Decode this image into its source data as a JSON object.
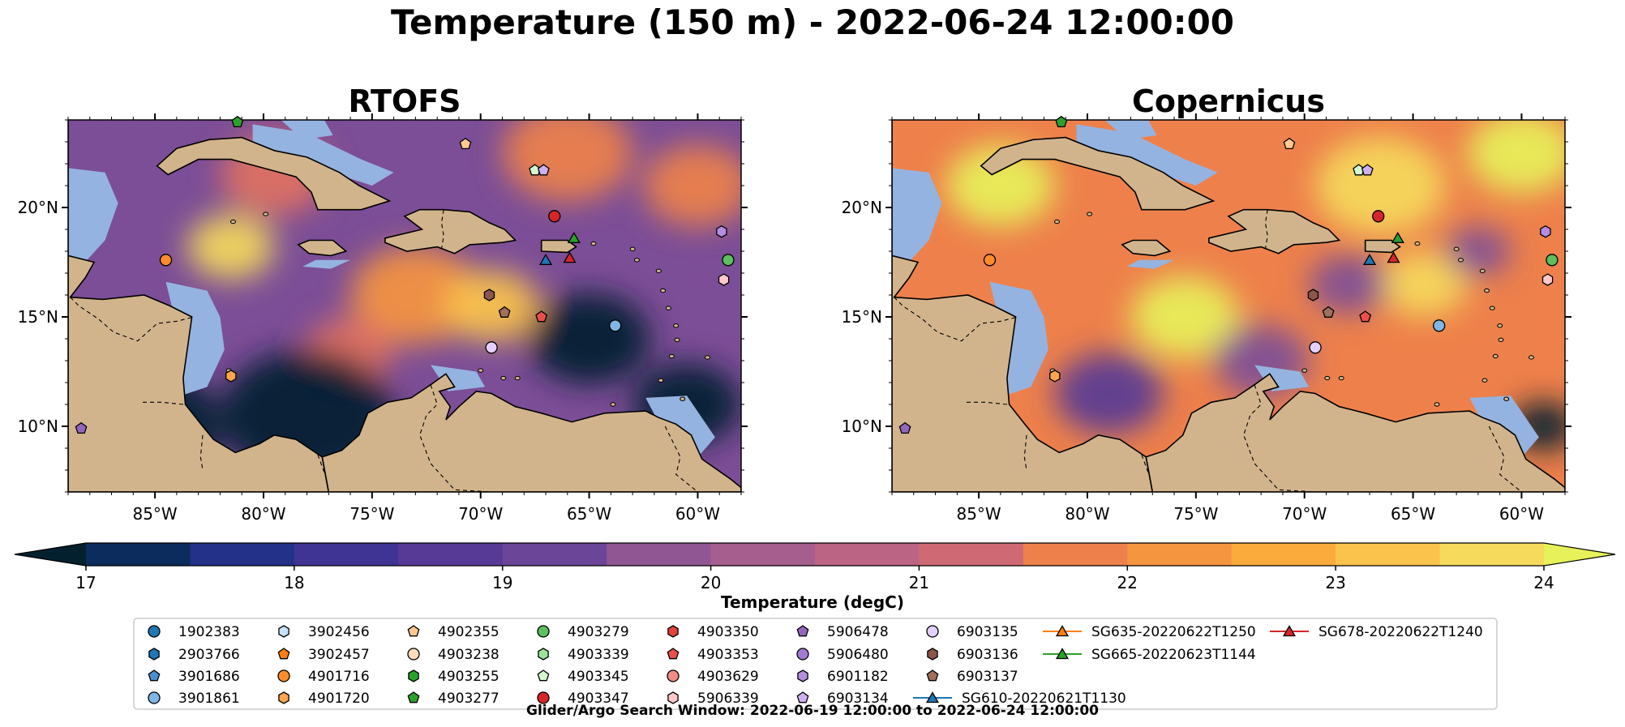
{
  "figure": {
    "title": "Temperature (150 m) - 2022-06-24 12:00:00",
    "footer": "Glider/Argo Search Window: 2022-06-19 12:00:00 to 2022-06-24 12:00:00"
  },
  "colors": {
    "land": "#d2b48c",
    "shelf": "#95b3e0",
    "coast": "#000000",
    "cmap": [
      "#03202f",
      "#0b2c5c",
      "#233189",
      "#3f3494",
      "#563a96",
      "#6b4598",
      "#7c4e97",
      "#905694",
      "#a55e8d",
      "#bb6484",
      "#cf6a74",
      "#e17261",
      "#ee814b",
      "#f69540",
      "#fbab3b",
      "#fbc34c",
      "#f5da5c",
      "#e7f15a"
    ]
  },
  "chart_data": [
    {
      "type": "heatmap",
      "title": "RTOFS",
      "subtitle": "",
      "lon_range": [
        -89,
        -58
      ],
      "lat_range": [
        7,
        24
      ],
      "xticks": [
        -85,
        -80,
        -75,
        -70,
        -65,
        -60
      ],
      "xtick_labels": [
        "85°W",
        "80°W",
        "75°W",
        "70°W",
        "65°W",
        "60°W"
      ],
      "yticks": [
        10,
        15,
        20
      ],
      "ytick_labels": [
        "10°N",
        "15°N",
        "20°N"
      ],
      "background_level": 19.6,
      "field_blobs": [
        {
          "lon": -81.5,
          "lat": 18.2,
          "value": 23.6,
          "r": 2.0
        },
        {
          "lon": -79.5,
          "lat": 21.5,
          "value": 21.5,
          "r": 2.5
        },
        {
          "lon": -73.0,
          "lat": 16.0,
          "value": 22.3,
          "r": 3.0
        },
        {
          "lon": -69.5,
          "lat": 15.5,
          "value": 23.0,
          "r": 2.2
        },
        {
          "lon": -66.0,
          "lat": 22.5,
          "value": 22.0,
          "r": 3.0
        },
        {
          "lon": -60.0,
          "lat": 21.0,
          "value": 22.0,
          "r": 2.5
        },
        {
          "lon": -76.0,
          "lat": 13.5,
          "value": 21.5,
          "r": 2.0
        },
        {
          "lon": -65.0,
          "lat": 14.0,
          "value": 17.0,
          "r": 2.8
        },
        {
          "lon": -78.0,
          "lat": 10.5,
          "value": 17.0,
          "r": 4.0
        },
        {
          "lon": -86.0,
          "lat": 10.0,
          "value": 17.0,
          "r": 4.0
        },
        {
          "lon": -60.5,
          "lat": 11.0,
          "value": 17.0,
          "r": 2.5
        }
      ]
    },
    {
      "type": "heatmap",
      "title": "Copernicus",
      "subtitle": "",
      "lon_range": [
        -89,
        -58
      ],
      "lat_range": [
        7,
        24
      ],
      "xticks": [
        -85,
        -80,
        -75,
        -70,
        -65,
        -60
      ],
      "xtick_labels": [
        "85°W",
        "80°W",
        "75°W",
        "70°W",
        "65°W",
        "60°W"
      ],
      "yticks": [
        10,
        15,
        20
      ],
      "ytick_labels": [
        "10°N",
        "15°N",
        "20°N"
      ],
      "background_level": 21.8,
      "field_blobs": [
        {
          "lon": -75.5,
          "lat": 15.0,
          "value": 24.0,
          "r": 2.5
        },
        {
          "lon": -84.0,
          "lat": 21.0,
          "value": 24.0,
          "r": 2.5
        },
        {
          "lon": -66.5,
          "lat": 21.0,
          "value": 23.5,
          "r": 3.0
        },
        {
          "lon": -60.0,
          "lat": 22.5,
          "value": 24.0,
          "r": 2.5
        },
        {
          "lon": -64.5,
          "lat": 16.5,
          "value": 23.5,
          "r": 2.0
        },
        {
          "lon": -72.0,
          "lat": 13.0,
          "value": 19.5,
          "r": 2.2
        },
        {
          "lon": -68.0,
          "lat": 16.5,
          "value": 19.5,
          "r": 1.8
        },
        {
          "lon": -79.0,
          "lat": 11.5,
          "value": 18.5,
          "r": 2.5
        },
        {
          "lon": -62.0,
          "lat": 18.0,
          "value": 19.5,
          "r": 1.5
        },
        {
          "lon": -87.0,
          "lat": 10.0,
          "value": 17.0,
          "r": 2.0
        },
        {
          "lon": -59.0,
          "lat": 10.0,
          "value": 17.0,
          "r": 1.5
        }
      ]
    }
  ],
  "colorbar": {
    "label": "Temperature (degC)",
    "min": 17,
    "max": 24,
    "step": 0.5,
    "ticks": [
      17,
      18,
      19,
      20,
      21,
      22,
      23,
      24
    ],
    "tick_labels": [
      "17",
      "18",
      "19",
      "20",
      "21",
      "22",
      "23",
      "24"
    ],
    "extend": "both"
  },
  "floats": [
    {
      "id": "1902383",
      "marker": "circle",
      "color": "#1f77b4"
    },
    {
      "id": "2903766",
      "marker": "hexagon",
      "color": "#1f77b4"
    },
    {
      "id": "3901686",
      "marker": "pentagon",
      "color": "#4c8fd1"
    },
    {
      "id": "3901861",
      "marker": "circle",
      "color": "#7fb6e6",
      "lon": -63.8,
      "lat": 14.6
    },
    {
      "id": "3902456",
      "marker": "hexagon",
      "color": "#c6e3fb"
    },
    {
      "id": "3902457",
      "marker": "pentagon",
      "color": "#ff7f0e"
    },
    {
      "id": "4901716",
      "marker": "circle",
      "color": "#ff8c2a",
      "lon": -84.5,
      "lat": 17.6
    },
    {
      "id": "4901720",
      "marker": "hexagon",
      "color": "#ffa54d",
      "lon": -81.5,
      "lat": 12.3
    },
    {
      "id": "4902355",
      "marker": "pentagon",
      "color": "#ffc891",
      "lon": -70.7,
      "lat": 22.9
    },
    {
      "id": "4903238",
      "marker": "circle",
      "color": "#ffdcbc"
    },
    {
      "id": "4903255",
      "marker": "hexagon",
      "color": "#2ca02c"
    },
    {
      "id": "4903277",
      "marker": "pentagon",
      "color": "#2ca02c",
      "lon": -81.2,
      "lat": 23.9
    },
    {
      "id": "4903279",
      "marker": "circle",
      "color": "#5dbf5d",
      "lon": -58.6,
      "lat": 17.6
    },
    {
      "id": "4903339",
      "marker": "hexagon",
      "color": "#9be39b"
    },
    {
      "id": "4903345",
      "marker": "pentagon",
      "color": "#d4f7ce",
      "lon": -67.5,
      "lat": 21.7
    },
    {
      "id": "4903347",
      "marker": "circle",
      "color": "#d62728",
      "lon": -66.6,
      "lat": 19.6
    },
    {
      "id": "4903350",
      "marker": "hexagon",
      "color": "#e0443c"
    },
    {
      "id": "4903353",
      "marker": "pentagon",
      "color": "#e8504a",
      "lon": -67.2,
      "lat": 15.0
    },
    {
      "id": "4903629",
      "marker": "circle",
      "color": "#f28b86"
    },
    {
      "id": "5906339",
      "marker": "hexagon",
      "color": "#ffc8c8",
      "lon": -58.8,
      "lat": 16.7
    },
    {
      "id": "5906478",
      "marker": "pentagon",
      "color": "#9467bd",
      "lon": -88.4,
      "lat": 9.9
    },
    {
      "id": "5906480",
      "marker": "circle",
      "color": "#a27ad1"
    },
    {
      "id": "6901182",
      "marker": "hexagon",
      "color": "#b48de2",
      "lon": -58.9,
      "lat": 18.9
    },
    {
      "id": "6903134",
      "marker": "pentagon",
      "color": "#cfb0f0",
      "lon": -67.1,
      "lat": 21.7
    },
    {
      "id": "6903135",
      "marker": "circle",
      "color": "#e4d0ff",
      "lon": -69.5,
      "lat": 13.6
    },
    {
      "id": "6903136",
      "marker": "hexagon",
      "color": "#8c564b",
      "lon": -69.6,
      "lat": 16.0
    },
    {
      "id": "6903137",
      "marker": "pentagon",
      "color": "#a0705f",
      "lon": -68.9,
      "lat": 15.2
    }
  ],
  "gliders": [
    {
      "id": "SG610-20220621T1130",
      "color": "#1f77b4",
      "lon": -67.0,
      "lat": 17.6
    },
    {
      "id": "SG635-20220622T1250",
      "color": "#ff7f0e"
    },
    {
      "id": "SG665-20220623T1144",
      "color": "#2ca02c",
      "lon": -65.7,
      "lat": 18.6
    },
    {
      "id": "SG678-20220622T1240",
      "color": "#d62728",
      "lon": -65.9,
      "lat": 17.7
    }
  ]
}
